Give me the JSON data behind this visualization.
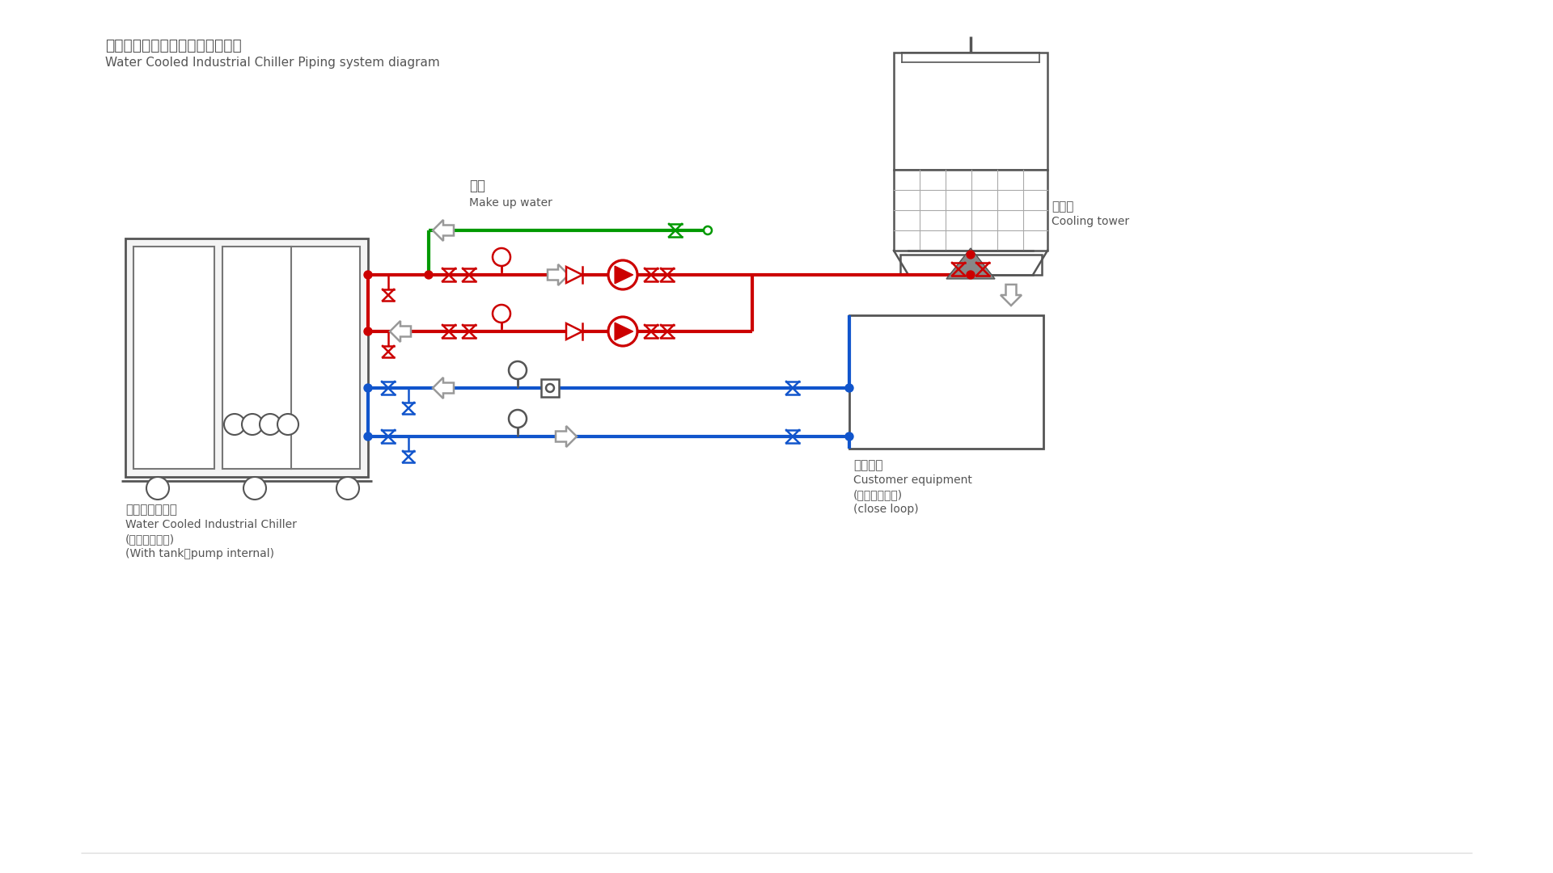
{
  "title_zh": "水冷冷水機組外部管路連接參考圖",
  "title_en": "Water Cooled Industrial Chiller Piping system diagram",
  "bg_color": "#ffffff",
  "pipe_red": "#cc0000",
  "pipe_blue": "#1155cc",
  "pipe_green": "#009900",
  "pipe_gray": "#888888",
  "chiller_label_zh": "水冷式冷水機組",
  "chiller_label_en": "Water Cooled Industrial Chiller",
  "chiller_label_zh2": "(含水箱、水泵)",
  "chiller_label_en2": "(With tank、pump internal)",
  "cooling_tower_zh": "冷卻塔",
  "cooling_tower_en": "Cooling tower",
  "makeup_water_zh": "補水",
  "makeup_water_en": "Make up water",
  "customer_zh": "客戶設備",
  "customer_en": "Customer equipment",
  "customer_zh2": "(需封閉承壓式)",
  "customer_en2": "(close loop)",
  "label_gray": "#555555"
}
